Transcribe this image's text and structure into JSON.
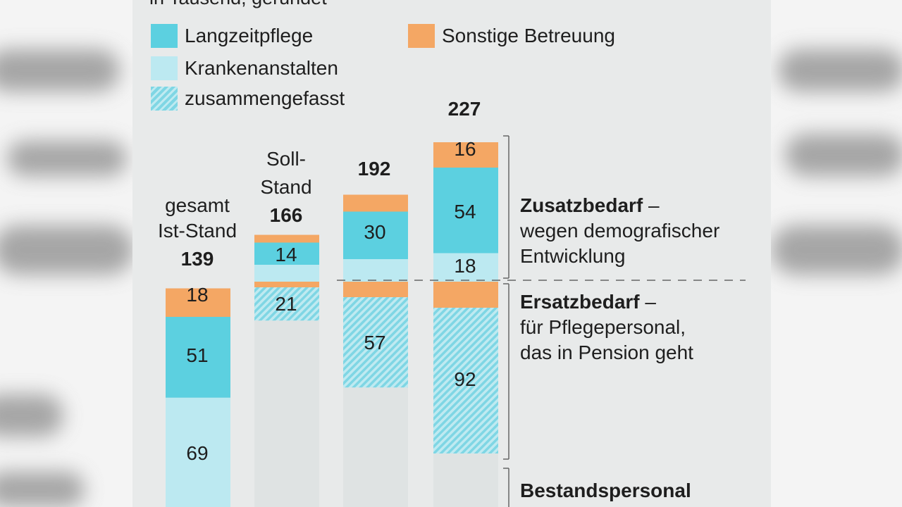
{
  "subtitle": "in Tausend, gerundet",
  "legend": [
    {
      "label": "Langzeitpflege",
      "color": "#5cd0e0"
    },
    {
      "label": "Krankenanstalten",
      "color": "#bce9f1"
    },
    {
      "label": "zusammengefasst",
      "color": "#7fd6e4"
    },
    {
      "label": "Sonstige Betreuung",
      "color": "#f4a764"
    }
  ],
  "columns": {
    "ist": {
      "line1": "gesamt",
      "line2": "Ist-Stand"
    },
    "soll": {
      "line1": "Soll-",
      "line2": "Stand"
    }
  },
  "annotations": {
    "zusatz_title": "Zusatzbedarf",
    "zusatz_dash": "–",
    "zusatz_line2": "wegen demografischer",
    "zusatz_line3": "Entwicklung",
    "ersatz_title": "Ersatzbedarf",
    "ersatz_dash": "–",
    "ersatz_line2": "für Pflegepersonal,",
    "ersatz_line3": "das in Pension geht",
    "bestand_title": "Bestandspersonal"
  },
  "colors": {
    "langzeit": "#5cd0e0",
    "kranken": "#bce9f1",
    "zusammen": "#7fd6e4",
    "sonstige": "#f4a764",
    "bestand_ghost": "#dfe3e3",
    "panel": "#e8eaea"
  },
  "chart_data": {
    "type": "bar",
    "stacked": true,
    "unit": "in Tausend, gerundet",
    "categories": [
      "gesamt Ist-Stand",
      "Soll-Stand",
      "",
      ""
    ],
    "totals": [
      139,
      166,
      192,
      227
    ],
    "ist_stand": {
      "Krankenanstalten": 69,
      "Langzeitpflege": 51,
      "Sonstige Betreuung": 18
    },
    "ersatzbedarf_zusammengefasst": [
      null,
      21,
      57,
      92
    ],
    "zusatzbedarf_langzeitpflege": [
      null,
      14,
      30,
      54
    ],
    "zusatzbedarf_krankenanstalten": [
      null,
      null,
      null,
      18
    ],
    "zusatzbedarf_sonstige": [
      null,
      null,
      null,
      16
    ],
    "labels": {
      "ist_kranken": "69",
      "ist_langzeit": "51",
      "ist_sonstige": "18",
      "c1_ersatz": "21",
      "c1_zusatz_langzeit": "14",
      "c2_ersatz": "57",
      "c2_zusatz_langzeit": "30",
      "c3_ersatz": "92",
      "c3_zusatz_kranken": "18",
      "c3_zusatz_langzeit": "54",
      "c3_zusatz_sonstige": "16",
      "total_0": "139",
      "total_1": "166",
      "total_2": "192",
      "total_3": "227"
    }
  }
}
